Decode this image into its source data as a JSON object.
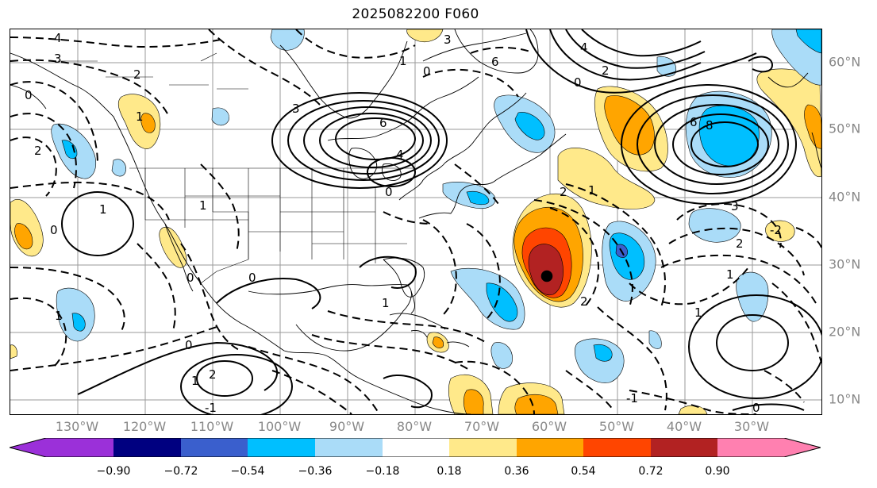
{
  "title": "2025082200 F060",
  "lat_labels": [
    "60°N",
    "50°N",
    "40°N",
    "30°N",
    "20°N",
    "10°N"
  ],
  "lon_labels": [
    "130°W",
    "120°W",
    "110°W",
    "100°W",
    "90°W",
    "80°W",
    "70°W",
    "60°W",
    "50°W",
    "40°W",
    "30°W"
  ],
  "colorbar": {
    "colors": [
      "#9b30d9",
      "#000080",
      "#3a5fcd",
      "#00bfff",
      "#aadcf8",
      "#ffffff",
      "#ffe98a",
      "#ffa500",
      "#ff4500",
      "#b22222",
      "#ff80b0"
    ],
    "ticks": [
      "−0.90",
      "−0.72",
      "−0.54",
      "−0.36",
      "−0.18",
      "0.18",
      "0.36",
      "0.54",
      "0.72",
      "0.90"
    ]
  },
  "contour_labels": {
    "alaska_4": "4",
    "alaska_3": "3",
    "nw_2": "2",
    "ne_pacific_0": "0",
    "bc_1": "1",
    "pacific_2": "2",
    "pacific_1": "1",
    "pacific_0": "0",
    "great_lakes_3": "3",
    "great_lakes_6": "6",
    "ontario_4": "4",
    "ohio_0": "0",
    "greenland_1": "1",
    "greenland_0": "0",
    "greenland_3": "3",
    "greenland_6": "6",
    "iceland_4": "4",
    "iceland_2": "2",
    "iceland_0": "0",
    "low_6": "6",
    "low_8": "8",
    "baja_1": "1",
    "mexico_0": "0",
    "gulf_1": "1",
    "carib_2": "2",
    "carib_1": "1",
    "atl_0": "0",
    "atl_2": "2",
    "atl_1": "1",
    "atl_m1": "-1",
    "azores_2": "2",
    "azores_m2": "-2",
    "azores_3": "3",
    "azores_1": "1",
    "bottom_0": "0",
    "bottom_m1": "-1",
    "west_1": "1",
    "west_0": "0",
    "trop_1": "1",
    "hurricane_2": "2"
  }
}
